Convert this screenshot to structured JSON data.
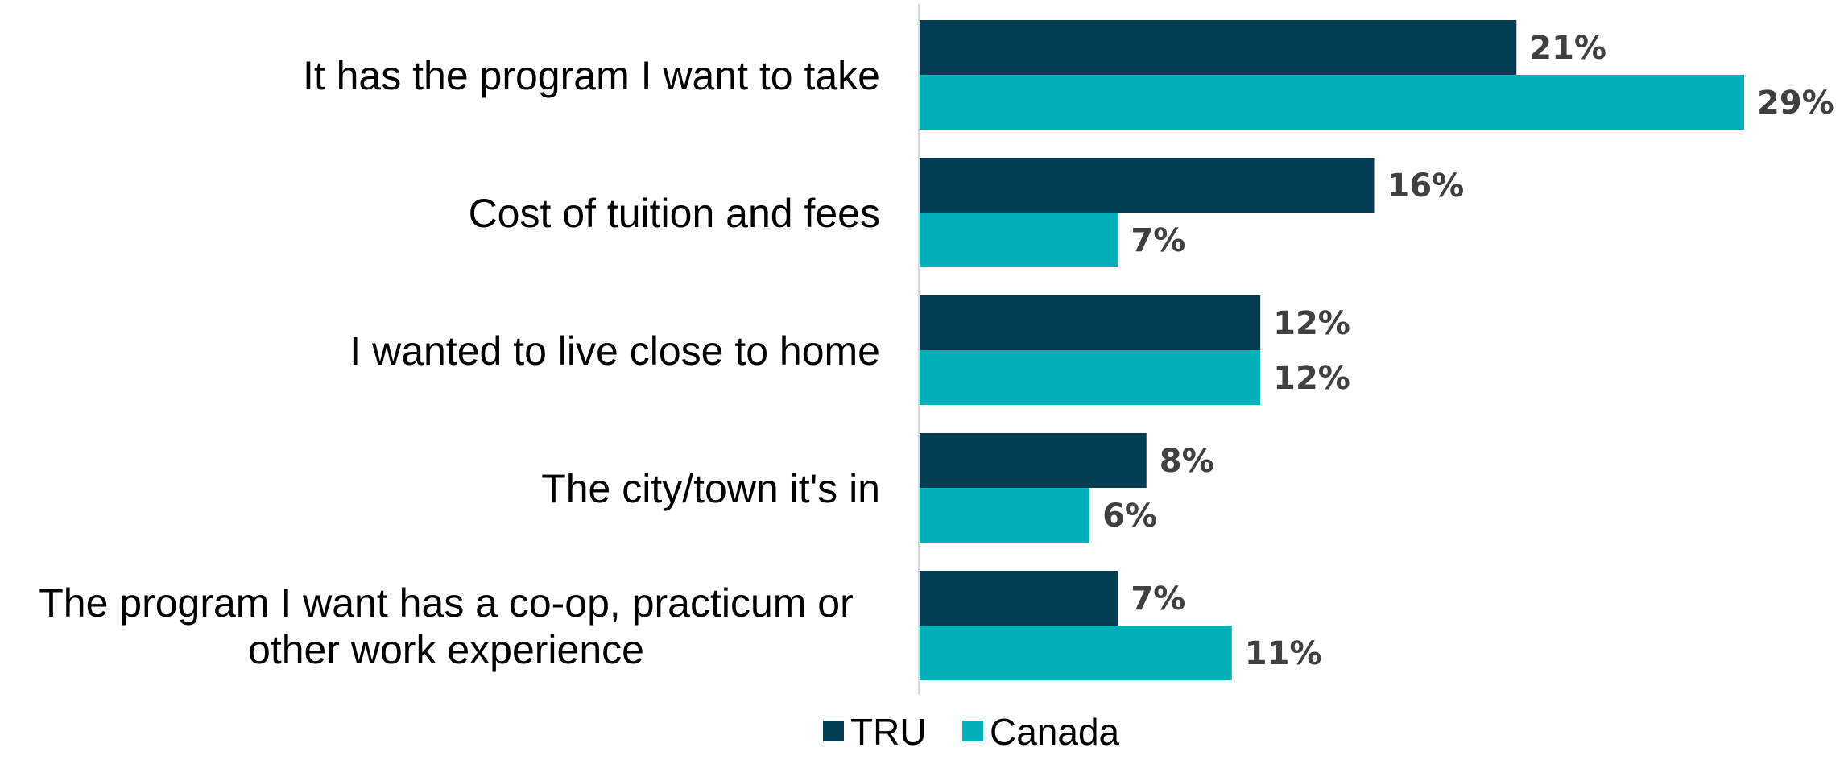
{
  "chart_data": {
    "type": "bar",
    "orientation": "horizontal",
    "categories": [
      [
        "It has the program I want to take"
      ],
      [
        "Cost of tuition and fees"
      ],
      [
        "I wanted to live close to home"
      ],
      [
        "The city/town it's in"
      ],
      [
        "The program I want has a co-op, practicum or",
        "other work experience"
      ]
    ],
    "series": [
      {
        "name": "TRU",
        "values": [
          21,
          16,
          12,
          8,
          7
        ],
        "labels": [
          "21%",
          "16%",
          "12%",
          "8%",
          "7%"
        ],
        "color": "#003D52"
      },
      {
        "name": "Canada",
        "values": [
          29,
          7,
          12,
          6,
          11
        ],
        "labels": [
          "29%",
          "7%",
          "12%",
          "6%",
          "11%"
        ],
        "color": "#00B0B9"
      }
    ],
    "xlim": [
      0,
      29
    ],
    "grid": false,
    "legend_position": "bottom",
    "axis_line_color": "#D9D9D9"
  }
}
